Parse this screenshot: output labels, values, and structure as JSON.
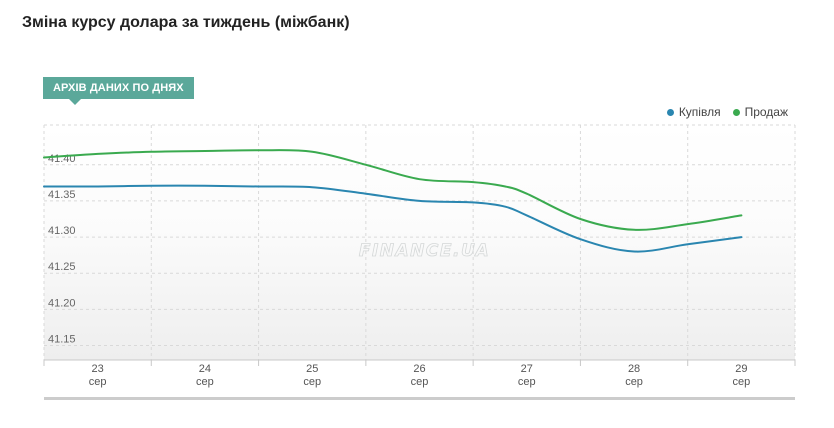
{
  "page": {
    "title": "Зміна курсу долара за тиждень (міжбанк)"
  },
  "archive_tab": {
    "label": "АРХІВ ДАНИХ ПО ДНЯХ"
  },
  "watermark": "FINANCE.UA",
  "chart_data": {
    "type": "line",
    "x_labels": [
      {
        "day": "23",
        "month": "сер"
      },
      {
        "day": "24",
        "month": "сер"
      },
      {
        "day": "25",
        "month": "сер"
      },
      {
        "day": "26",
        "month": "сер"
      },
      {
        "day": "27",
        "month": "сер"
      },
      {
        "day": "28",
        "month": "сер"
      },
      {
        "day": "29",
        "month": "сер"
      }
    ],
    "y_ticks": [
      "41.15",
      "41.20",
      "41.25",
      "41.30",
      "41.35",
      "41.40"
    ],
    "ylim": [
      41.13,
      41.455
    ],
    "grid": true,
    "legend_position": "top-right",
    "series": [
      {
        "name": "Купівля",
        "color": "#2a86b0",
        "points": [
          [
            22.5,
            41.37
          ],
          [
            23,
            41.37
          ],
          [
            23.5,
            41.371
          ],
          [
            24,
            41.371
          ],
          [
            24.5,
            41.37
          ],
          [
            25,
            41.369
          ],
          [
            25.5,
            41.36
          ],
          [
            26,
            41.35
          ],
          [
            26.5,
            41.348
          ],
          [
            26.8,
            41.342
          ],
          [
            27,
            41.33
          ],
          [
            27.5,
            41.297
          ],
          [
            28,
            41.28
          ],
          [
            28.5,
            41.29
          ],
          [
            29,
            41.3
          ]
        ]
      },
      {
        "name": "Продаж",
        "color": "#3aaa4f",
        "points": [
          [
            22.5,
            41.41
          ],
          [
            23,
            41.415
          ],
          [
            23.5,
            41.418
          ],
          [
            24,
            41.419
          ],
          [
            24.5,
            41.42
          ],
          [
            25,
            41.418
          ],
          [
            25.5,
            41.4
          ],
          [
            26,
            41.38
          ],
          [
            26.5,
            41.376
          ],
          [
            26.8,
            41.37
          ],
          [
            27,
            41.36
          ],
          [
            27.5,
            41.325
          ],
          [
            28,
            41.31
          ],
          [
            28.5,
            41.318
          ],
          [
            29,
            41.33
          ]
        ]
      }
    ]
  }
}
